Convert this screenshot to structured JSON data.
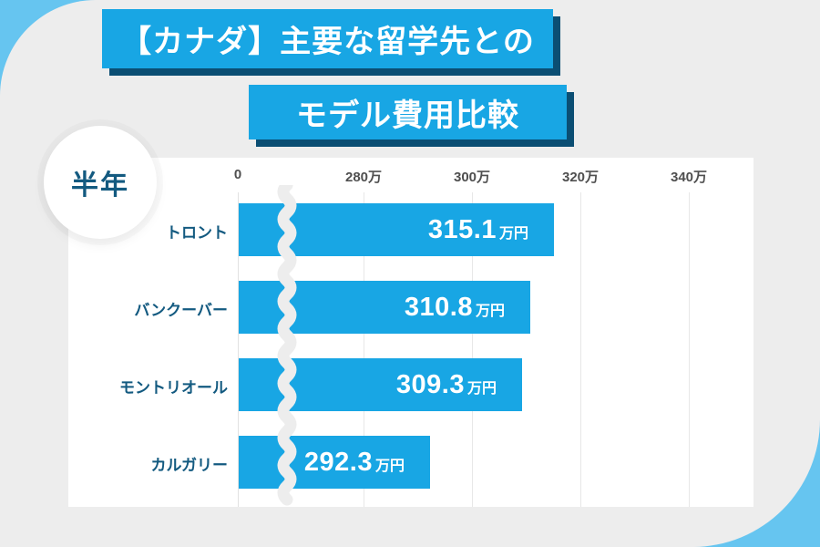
{
  "title": {
    "line1": "【カナダ】主要な留学先との",
    "line2": "モデル費用比較"
  },
  "badge": {
    "label": "半年"
  },
  "chart_data": {
    "type": "bar",
    "orientation": "horizontal",
    "title": "【カナダ】主要な留学先とのモデル費用比較",
    "period_label": "半年",
    "categories": [
      "トロント",
      "バンクーバー",
      "モントリオール",
      "カルガリー"
    ],
    "values": [
      315.1,
      310.8,
      309.3,
      292.3
    ],
    "value_labels": [
      "315.1",
      "310.8",
      "309.3",
      "292.3"
    ],
    "unit": "万円",
    "x_ticks": [
      {
        "label": "0",
        "value": 0
      },
      {
        "label": "280万",
        "value": 280
      },
      {
        "label": "300万",
        "value": 300
      },
      {
        "label": "320万",
        "value": 320
      },
      {
        "label": "340万",
        "value": 340
      }
    ],
    "xlabel": "",
    "ylabel": "",
    "xlim": [
      0,
      350
    ],
    "axis_break": true,
    "grid": true,
    "legend": false
  },
  "colors": {
    "bar": "#18A6E4",
    "title_box": "#18A6E4",
    "title_shadow": "#0B4E73",
    "corner_accent": "#66C5F0",
    "surface_gray": "#EDEDED",
    "panel_white": "#FFFFFF",
    "label_navy": "#135A80",
    "tick_gray": "#4F4F4F",
    "value_text": "#FFFFFF"
  }
}
